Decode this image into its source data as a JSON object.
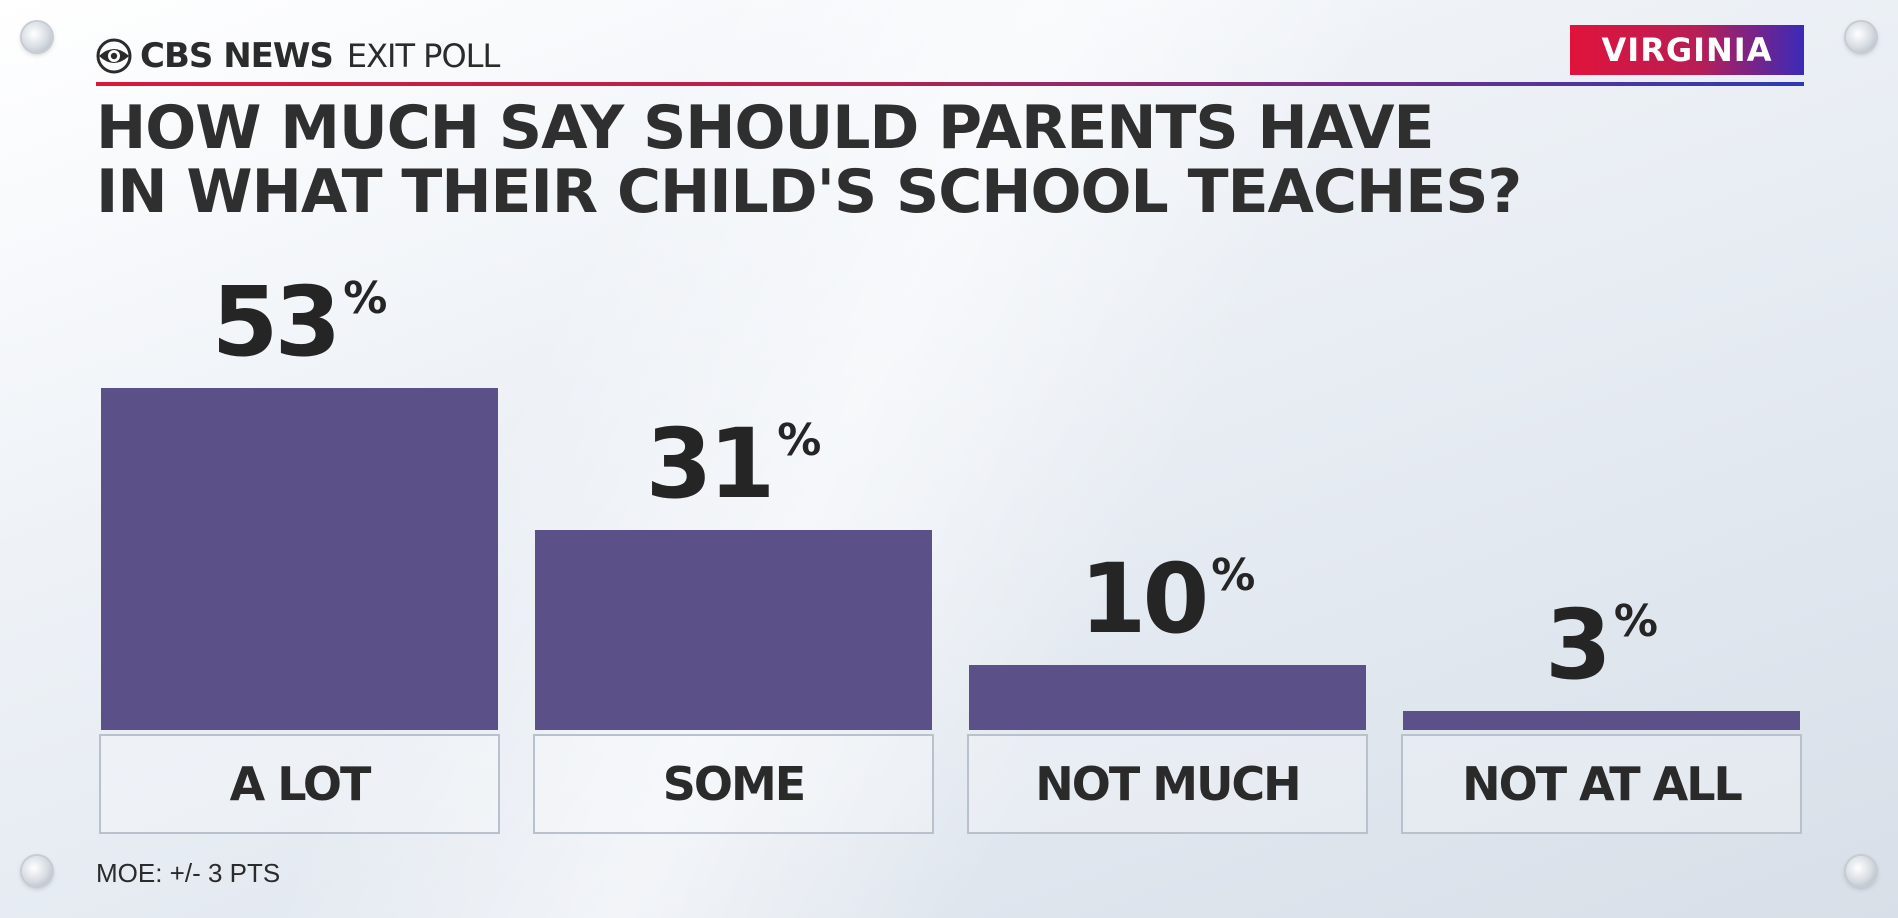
{
  "header": {
    "brand": "CBS NEWS",
    "subtitle": "EXIT POLL",
    "state": "VIRGINIA",
    "logo_icon": "cbs-eye-icon"
  },
  "colors": {
    "bar": "#5b5088",
    "state_badge_start": "#e0133b",
    "state_badge_end": "#3b2ab8",
    "text": "#2f2f2f"
  },
  "chart_data": {
    "type": "bar",
    "title": "HOW MUCH SAY SHOULD PARENTS HAVE IN WHAT THEIR CHILD'S SCHOOL TEACHES?",
    "title_lines": [
      "HOW MUCH SAY SHOULD PARENTS HAVE",
      "IN WHAT THEIR CHILD'S SCHOOL TEACHES?"
    ],
    "categories": [
      "A LOT",
      "SOME",
      "NOT MUCH",
      "NOT AT ALL"
    ],
    "values": [
      53,
      31,
      10,
      3
    ],
    "value_labels": [
      "53",
      "31",
      "10",
      "3"
    ],
    "value_suffix": "%",
    "ylim": [
      0,
      53
    ],
    "grid": false,
    "xlabel": "",
    "ylabel": ""
  },
  "footer": {
    "moe": "MOE: +/- 3 PTS"
  }
}
